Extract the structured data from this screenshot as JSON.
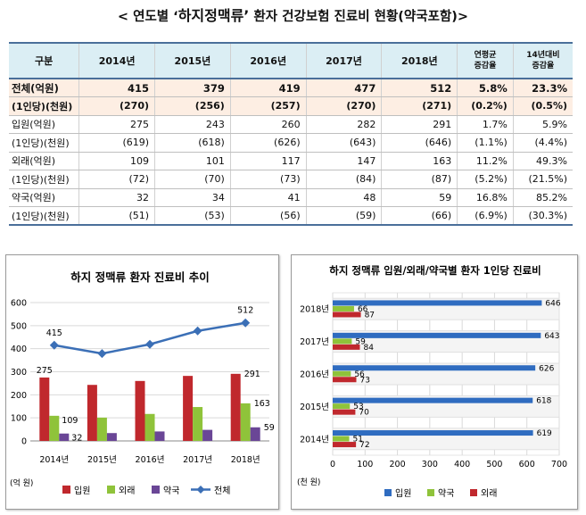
{
  "page": {
    "title_prefix": "< 연도별 ‘",
    "title_highlight": "하지정맥류’",
    "title_suffix": " 환자 건강보험 진료비 현황(약국포함)>"
  },
  "table": {
    "headers": [
      "구분",
      "2014년",
      "2015년",
      "2016년",
      "2017년",
      "2018년",
      "연평균\n증감율",
      "14년대비\n증감율"
    ],
    "header_labels": {
      "h0": "구분",
      "h1": "2014년",
      "h2": "2015년",
      "h3": "2016년",
      "h4": "2017년",
      "h5": "2018년",
      "h6a": "연평균",
      "h6b": "증감율",
      "h7a": "14년대비",
      "h7b": "증감율"
    },
    "rows": [
      {
        "label": "전체(억원)",
        "cells": [
          "415",
          "379",
          "419",
          "477",
          "512",
          "5.8%",
          "23.3%"
        ]
      },
      {
        "label": "(1인당)(천원)",
        "cells": [
          "(270)",
          "(256)",
          "(257)",
          "(270)",
          "(271)",
          "(0.2%)",
          "(0.5%)"
        ]
      },
      {
        "label": "입원(억원)",
        "cells": [
          "275",
          "243",
          "260",
          "282",
          "291",
          "1.7%",
          "5.9%"
        ]
      },
      {
        "label": "(1인당)(천원)",
        "cells": [
          "(619)",
          "(618)",
          "(626)",
          "(643)",
          "(646)",
          "(1.1%)",
          "(4.4%)"
        ]
      },
      {
        "label": "외래(억원)",
        "cells": [
          "109",
          "101",
          "117",
          "147",
          "163",
          "11.2%",
          "49.3%"
        ]
      },
      {
        "label": "(1인당)(천원)",
        "cells": [
          "(72)",
          "(70)",
          "(73)",
          "(84)",
          "(87)",
          "(5.2%)",
          "(21.5%)"
        ]
      },
      {
        "label": "약국(억원)",
        "cells": [
          "32",
          "34",
          "41",
          "48",
          "59",
          "16.8%",
          "85.2%"
        ]
      },
      {
        "label": "(1인당)(천원)",
        "cells": [
          "(51)",
          "(53)",
          "(56)",
          "(59)",
          "(66)",
          "(6.9%)",
          "(30.3%)"
        ]
      }
    ]
  },
  "colors": {
    "inpatient": "#c0282d",
    "outpatient": "#8fc33a",
    "pharmacy": "#6a4696",
    "total": "#3b6fb6",
    "bar_blue": "#2f6cc0",
    "bar_green": "#8fc33a",
    "bar_red": "#c0282d"
  },
  "chart_data": [
    {
      "type": "bar",
      "title": "하지 정맥류 환자 진료비 추이",
      "ylabel": "(억 원)",
      "categories": [
        "2014년",
        "2015년",
        "2016년",
        "2017년",
        "2018년"
      ],
      "ylim": [
        0,
        600
      ],
      "yticks": [
        0,
        100,
        200,
        300,
        400,
        500,
        600
      ],
      "series": [
        {
          "name": "입원",
          "kind": "bar",
          "values": [
            275,
            243,
            260,
            282,
            291
          ]
        },
        {
          "name": "외래",
          "kind": "bar",
          "values": [
            109,
            101,
            117,
            147,
            163
          ]
        },
        {
          "name": "약국",
          "kind": "bar",
          "values": [
            32,
            34,
            41,
            48,
            59
          ]
        },
        {
          "name": "전체",
          "kind": "line",
          "values": [
            415,
            379,
            419,
            477,
            512
          ]
        }
      ],
      "data_labels": {
        "전체": [
          {
            "i": 0,
            "text": "415"
          },
          {
            "i": 4,
            "text": "512"
          }
        ],
        "입원": [
          {
            "i": 0,
            "text": "275"
          },
          {
            "i": 4,
            "text": "291"
          }
        ],
        "외래": [
          {
            "i": 0,
            "text": "109"
          },
          {
            "i": 4,
            "text": "163"
          }
        ],
        "약국": [
          {
            "i": 0,
            "text": "32"
          },
          {
            "i": 4,
            "text": "59"
          }
        ]
      },
      "legend_position": "bottom",
      "grid": true
    },
    {
      "type": "bar",
      "orientation": "horizontal",
      "title": "하지 정맥류 입원/외래/약국별 환자 1인당 진료비",
      "xlabel": "(천 원)",
      "categories": [
        "2018년",
        "2017년",
        "2016년",
        "2015년",
        "2014년"
      ],
      "xlim": [
        0,
        700
      ],
      "xticks": [
        0,
        100,
        200,
        300,
        400,
        500,
        600,
        700
      ],
      "series": [
        {
          "name": "입원",
          "values": [
            646,
            643,
            626,
            618,
            619
          ]
        },
        {
          "name": "약국",
          "values": [
            66,
            59,
            56,
            53,
            51
          ]
        },
        {
          "name": "외래",
          "values": [
            87,
            84,
            73,
            70,
            72
          ]
        }
      ],
      "legend_position": "bottom",
      "grid": true
    }
  ]
}
